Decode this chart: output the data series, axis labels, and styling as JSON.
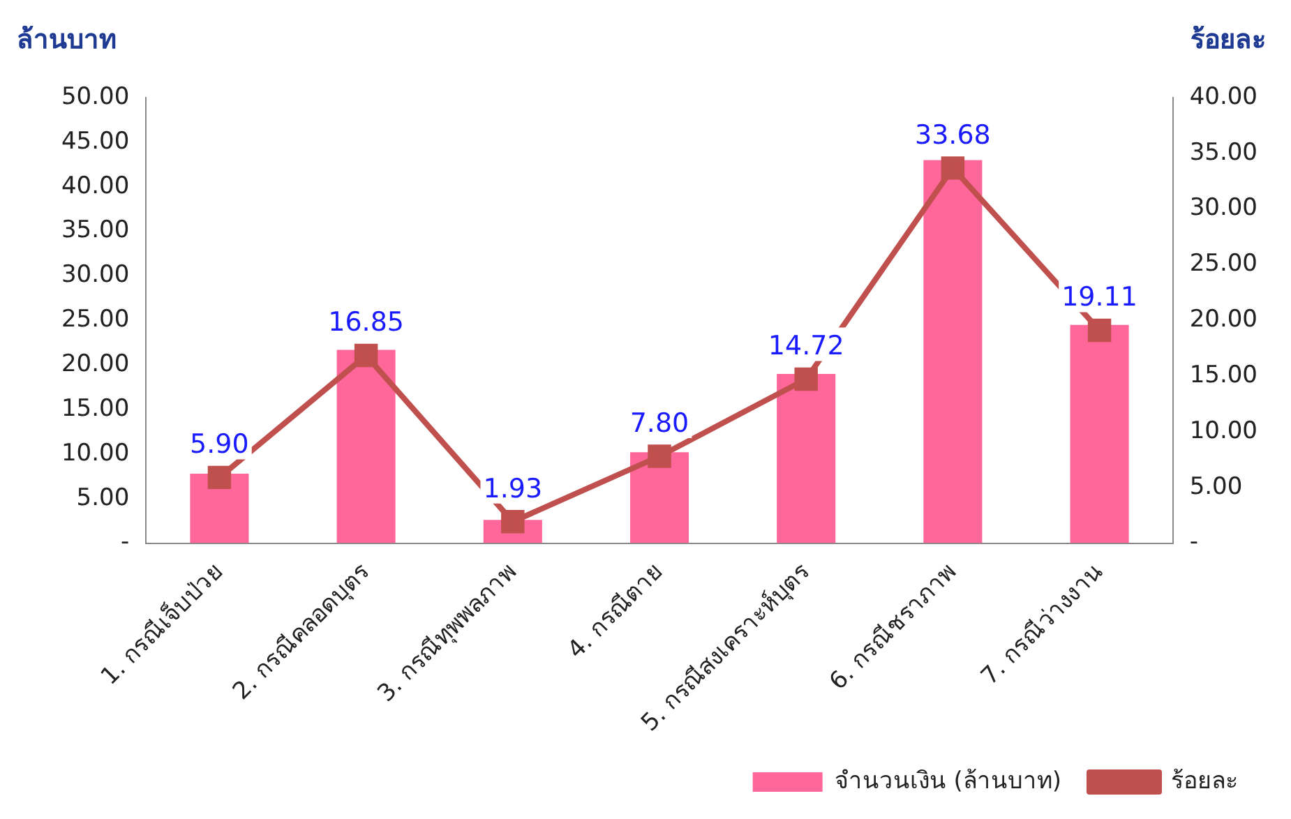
{
  "chart_data": {
    "type": "bar",
    "ylabel": "ล้านบาท",
    "y2label": "ร้อยละ",
    "categories": [
      "1. กรณีเจ็บป่วย",
      "2. กรณีคลอดบุตร",
      "3. กรณีทุพพลภาพ",
      "4. กรณีตาย",
      "5. กรณีสงเคราะห์บุตร",
      "6. กรณีชราภาพ",
      "7. กรณีว่างงาน"
    ],
    "series": [
      {
        "name": "จำนวนเงิน (ล้านบาท)",
        "color": "#ff6699",
        "values": [
          7.8,
          21.7,
          2.6,
          10.2,
          19.0,
          43.0,
          24.5
        ]
      },
      {
        "name": "ร้อยละ",
        "type": "line",
        "axis": "y2",
        "color": "#c0504d",
        "marker": "square",
        "values": [
          5.9,
          16.85,
          1.93,
          7.8,
          14.72,
          33.68,
          19.11
        ],
        "value_labels": [
          "5.90",
          "16.85",
          "1.93",
          "7.80",
          "14.72",
          "33.68",
          "19.11"
        ]
      }
    ],
    "ylim": [
      0,
      50
    ],
    "yticks": [
      {
        "value": 0,
        "label": "-"
      },
      {
        "value": 5,
        "label": "5.00"
      },
      {
        "value": 10,
        "label": "10.00"
      },
      {
        "value": 15,
        "label": "15.00"
      },
      {
        "value": 20,
        "label": "20.00"
      },
      {
        "value": 25,
        "label": "25.00"
      },
      {
        "value": 30,
        "label": "30.00"
      },
      {
        "value": 35,
        "label": "35.00"
      },
      {
        "value": 40,
        "label": "40.00"
      },
      {
        "value": 45,
        "label": "45.00"
      },
      {
        "value": 50,
        "label": "50.00"
      }
    ],
    "y2lim": [
      0,
      40
    ],
    "y2ticks": [
      {
        "value": 0,
        "label": "-"
      },
      {
        "value": 5,
        "label": "5.00"
      },
      {
        "value": 10,
        "label": "10.00"
      },
      {
        "value": 15,
        "label": "15.00"
      },
      {
        "value": 20,
        "label": "20.00"
      },
      {
        "value": 25,
        "label": "25.00"
      },
      {
        "value": 30,
        "label": "30.00"
      },
      {
        "value": 35,
        "label": "35.00"
      },
      {
        "value": 40,
        "label": "40.00"
      }
    ],
    "grid": false,
    "legend": "bottom right"
  }
}
